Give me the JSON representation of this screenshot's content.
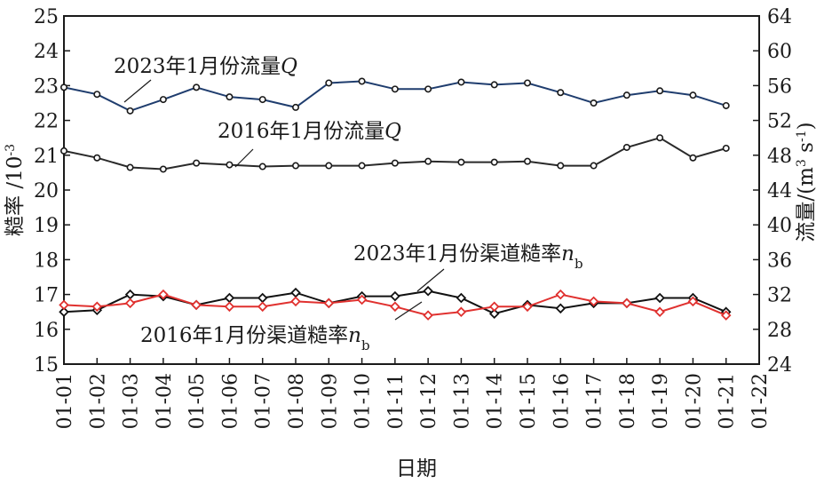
{
  "chart_data": {
    "type": "line",
    "x": [
      "01-01",
      "01-02",
      "01-03",
      "01-04",
      "01-05",
      "01-06",
      "01-07",
      "01-08",
      "01-09",
      "01-10",
      "01-11",
      "01-12",
      "01-13",
      "01-14",
      "01-15",
      "01-16",
      "01-17",
      "01-18",
      "01-19",
      "01-20",
      "01-21"
    ],
    "x_ticks": [
      "01-01",
      "01-02",
      "01-03",
      "01-04",
      "01-05",
      "01-06",
      "01-07",
      "01-08",
      "01-09",
      "01-10",
      "01-11",
      "01-12",
      "01-13",
      "01-14",
      "01-15",
      "01-16",
      "01-17",
      "01-18",
      "01-19",
      "01-20",
      "01-21",
      "01-22"
    ],
    "xlabel": "日期",
    "ylabel_left": "糙率 /10",
    "ylabel_left_exp": "-3",
    "ylabel_right": "流量/(m",
    "ylabel_right_exp1": "3",
    "ylabel_right_mid": " s",
    "ylabel_right_exp2": "-1",
    "ylabel_right_end": ")",
    "ylim_left": [
      15,
      25
    ],
    "ylim_right": [
      24,
      64
    ],
    "yticks_left": [
      15,
      16,
      17,
      18,
      19,
      20,
      21,
      22,
      23,
      24,
      25
    ],
    "yticks_right": [
      24,
      28,
      32,
      36,
      40,
      44,
      48,
      52,
      56,
      60,
      64
    ],
    "grid": false,
    "series": [
      {
        "name": "2023年1月份流量Q",
        "label_main": "2023年1月份流量",
        "label_var": "Q",
        "label_sub": "",
        "axis": "right",
        "color": "#1f3d6e",
        "marker": "circle",
        "values": [
          55.8,
          55.0,
          53.1,
          54.4,
          55.8,
          54.7,
          54.4,
          53.5,
          56.3,
          56.5,
          55.6,
          55.6,
          56.4,
          56.1,
          56.3,
          55.2,
          54.0,
          54.9,
          55.4,
          54.9,
          53.7
        ]
      },
      {
        "name": "2016年1月份流量Q",
        "label_main": "2016年1月份流量",
        "label_var": "Q",
        "label_sub": "",
        "axis": "right",
        "color": "#2a2a2a",
        "marker": "circle",
        "values": [
          48.5,
          47.7,
          46.6,
          46.4,
          47.1,
          46.9,
          46.7,
          46.8,
          46.8,
          46.8,
          47.1,
          47.3,
          47.2,
          47.2,
          47.3,
          46.8,
          46.8,
          48.9,
          50.0,
          47.7,
          48.8
        ]
      },
      {
        "name": "2023年1月份渠道糙率nb",
        "label_main": "2023年1月份渠道糙率",
        "label_var": "n",
        "label_sub": "b",
        "axis": "left",
        "color": "#111111",
        "marker": "diamond",
        "values": [
          16.5,
          16.55,
          17.0,
          16.95,
          16.7,
          16.9,
          16.9,
          17.05,
          16.75,
          16.95,
          16.95,
          17.1,
          16.9,
          16.45,
          16.7,
          16.6,
          16.75,
          16.75,
          16.9,
          16.9,
          16.5
        ]
      },
      {
        "name": "2016年1月份渠道糙率nb",
        "label_main": "2016年1月份渠道糙率",
        "label_var": "n",
        "label_sub": "b",
        "axis": "left",
        "color": "#e0312f",
        "marker": "diamond",
        "values": [
          16.7,
          16.65,
          16.75,
          17.0,
          16.7,
          16.65,
          16.65,
          16.8,
          16.75,
          16.85,
          16.65,
          16.4,
          16.5,
          16.65,
          16.65,
          17.0,
          16.8,
          16.75,
          16.5,
          16.8,
          16.4
        ]
      }
    ]
  }
}
